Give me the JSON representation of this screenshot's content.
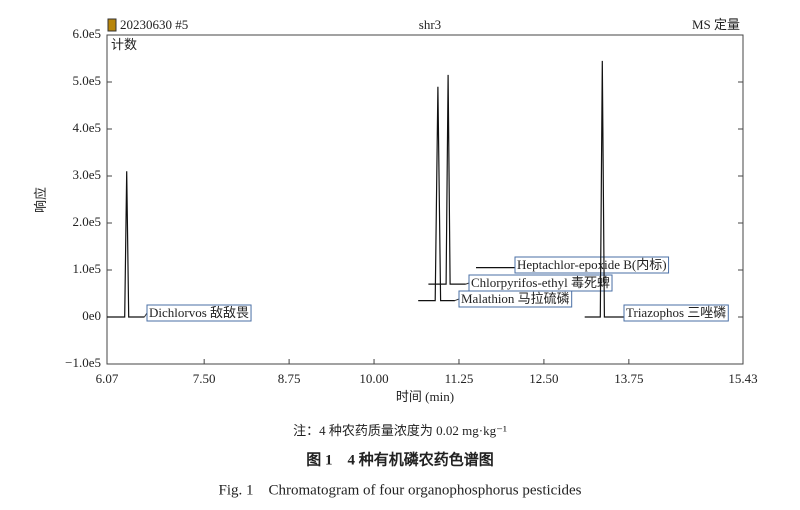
{
  "chart_data": {
    "type": "line",
    "header_left": "20230630 #5",
    "header_center": "shr3",
    "header_right": "MS 定量",
    "y_inner_label": "计数",
    "ylabel": "响应",
    "xlabel": "时间 (min)",
    "note": "注：4 种农药质量浓度为 0.02 mg·kg⁻¹",
    "title": "图 1　4 种有机磷农药色谱图",
    "subtitle": "Fig. 1　Chromatogram of four organophosphorus pesticides",
    "xlim": [
      6.07,
      15.43
    ],
    "xticks": [
      6.07,
      {
        "value": 7.5,
        "label": "7.50"
      },
      8.75,
      {
        "value": 10,
        "label": "10.00"
      },
      11.25,
      {
        "value": 12.5,
        "label": "12.50"
      },
      13.75,
      15.43
    ],
    "ylim": [
      -100000,
      600000
    ],
    "yticks": [
      {
        "value": -100000,
        "label": "−1.0e5"
      },
      {
        "value": 0,
        "label": "0e0"
      },
      {
        "value": 100000,
        "label": "1.0e5"
      },
      {
        "value": 200000,
        "label": "2.0e5"
      },
      {
        "value": 300000,
        "label": "3.0e5"
      },
      {
        "value": 400000,
        "label": "4.0e5"
      },
      {
        "value": 500000,
        "label": "5.0e5"
      },
      {
        "value": 600000,
        "label": "6.0e5"
      }
    ],
    "series": [
      {
        "name": "Dichlorvos 敌敌畏",
        "color": "#111111",
        "x": [
          6.07,
          6.33,
          6.36,
          6.39,
          6.62
        ],
        "values": [
          0,
          0,
          310000,
          0,
          0
        ]
      },
      {
        "name": "Malathion 马拉硫磷",
        "color": "#111111",
        "x": [
          10.65,
          10.9,
          10.94,
          10.98,
          11.19
        ],
        "values": [
          35000,
          35000,
          490000,
          35000,
          35000
        ]
      },
      {
        "name": "Chlorpyrifos-ethyl 毒死蜱",
        "color": "#111111",
        "x": [
          10.8,
          11.06,
          11.09,
          11.12,
          11.35
        ],
        "values": [
          70000,
          70000,
          515000,
          70000,
          70000
        ]
      },
      {
        "name": "Heptachlor-epoxide B(内标)",
        "color": "#111111",
        "x": [
          11.5,
          12.1
        ],
        "values": [
          105000,
          105000
        ]
      },
      {
        "name": "Triazophos 三唑磷",
        "color": "#111111",
        "x": [
          13.1,
          13.33,
          13.36,
          13.39,
          13.7
        ],
        "values": [
          0,
          0,
          545000,
          0,
          0
        ]
      }
    ]
  }
}
